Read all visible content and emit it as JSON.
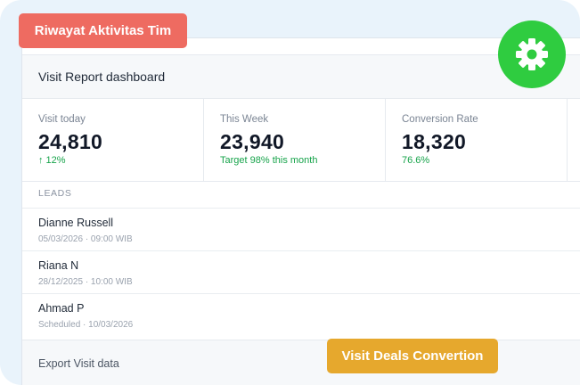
{
  "badge": {
    "label": "Riwayat Aktivitas Tim"
  },
  "header": {
    "title": "Visit Report dashboard"
  },
  "stats": [
    {
      "label": "Visit today",
      "value": "24,810",
      "sub": "↑ 12%"
    },
    {
      "label": "This Week",
      "value": "23,940",
      "sub": "Target 98% this month"
    },
    {
      "label": "Conversion Rate",
      "value": "18,320",
      "sub": "76.6%"
    }
  ],
  "leads": {
    "heading": "LEADS",
    "rows": [
      {
        "name": "Dianne Russell",
        "meta": "05/03/2026 · 09:00 WIB"
      },
      {
        "name": "Riana N",
        "meta": "28/12/2025 · 10:00 WIB"
      },
      {
        "name": "Ahmad P",
        "meta": "Scheduled · 10/03/2026"
      }
    ]
  },
  "footer": {
    "export_label": "Export Visit data"
  },
  "cta": {
    "label": "Visit Deals Convertion"
  },
  "icons": {
    "settings": "gear-icon",
    "trend": "arrow-up"
  },
  "colors": {
    "badge": "#ee6b61",
    "cta": "#e6a82d",
    "settings": "#2fcc40",
    "positive": "#16a34a"
  }
}
